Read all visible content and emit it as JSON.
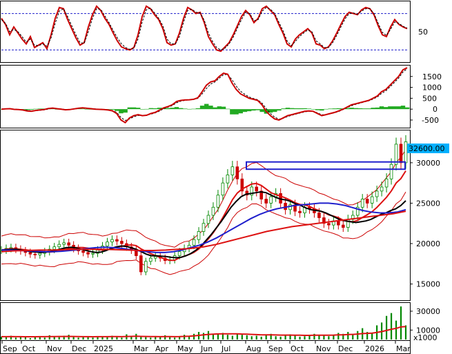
{
  "chart_data": [
    {
      "id": "stochastic",
      "type": "line",
      "y_ticks": [
        "50"
      ],
      "reference_levels": [
        20,
        80
      ],
      "ylim": [
        0,
        100
      ],
      "series": [
        {
          "color": "#cc0000",
          "values": [
            72,
            62,
            45,
            58,
            48,
            38,
            30,
            42,
            24,
            28,
            32,
            22,
            45,
            72,
            90,
            88,
            70,
            55,
            40,
            28,
            32,
            58,
            78,
            92,
            85,
            72,
            62,
            48,
            35,
            25,
            22,
            20,
            24,
            45,
            75,
            92,
            88,
            78,
            70,
            55,
            32,
            28,
            30,
            48,
            72,
            90,
            86,
            80,
            82,
            65,
            42,
            30,
            20,
            18,
            25,
            32,
            45,
            60,
            75,
            85,
            78,
            65,
            72,
            88,
            92,
            85,
            78,
            62,
            48,
            30,
            25,
            38,
            45,
            50,
            55,
            48,
            30,
            28,
            22,
            25,
            35,
            48,
            62,
            75,
            82,
            80,
            78,
            86,
            90,
            88,
            78,
            60,
            45,
            42,
            58,
            70,
            62,
            58,
            55
          ]
        },
        {
          "color": "#000000",
          "dashed": true,
          "values": [
            70,
            64,
            50,
            54,
            50,
            42,
            33,
            38,
            28,
            27,
            30,
            26,
            40,
            64,
            84,
            88,
            75,
            60,
            45,
            32,
            31,
            50,
            72,
            88,
            87,
            76,
            65,
            52,
            40,
            30,
            24,
            21,
            23,
            38,
            66,
            86,
            89,
            81,
            72,
            60,
            38,
            30,
            30,
            42,
            66,
            85,
            87,
            82,
            81,
            69,
            48,
            34,
            24,
            20,
            23,
            30,
            41,
            56,
            70,
            82,
            80,
            68,
            70,
            84,
            90,
            87,
            80,
            66,
            52,
            35,
            27,
            34,
            42,
            48,
            53,
            50,
            35,
            30,
            24,
            24,
            32,
            44,
            58,
            71,
            80,
            81,
            79,
            84,
            88,
            88,
            80,
            64,
            49,
            44,
            54,
            66,
            64,
            59,
            56
          ]
        }
      ]
    },
    {
      "id": "macd",
      "type": "line",
      "y_ticks": [
        "1500",
        "1000",
        "500",
        "0",
        "-500"
      ],
      "ylim": [
        -850,
        2000
      ],
      "macd_line": [
        0,
        10,
        20,
        -10,
        -20,
        -40,
        -80,
        -100,
        -60,
        -40,
        -20,
        30,
        50,
        20,
        0,
        -30,
        -20,
        10,
        40,
        60,
        40,
        20,
        0,
        -10,
        -20,
        -40,
        -80,
        -200,
        -500,
        -620,
        -400,
        -300,
        -250,
        -300,
        -280,
        -200,
        -150,
        -50,
        60,
        120,
        200,
        350,
        400,
        420,
        430,
        450,
        520,
        800,
        1100,
        1250,
        1300,
        1500,
        1650,
        1600,
        1200,
        900,
        700,
        600,
        500,
        450,
        400,
        200,
        -100,
        -300,
        -450,
        -500,
        -400,
        -300,
        -250,
        -200,
        -150,
        -100,
        -80,
        -100,
        -200,
        -300,
        -250,
        -200,
        -150,
        -80,
        0,
        100,
        200,
        250,
        300,
        350,
        400,
        500,
        600,
        800,
        900,
        1100,
        1300,
        1500,
        1800,
        1900
      ],
      "signal_line": [
        0,
        5,
        12,
        0,
        -10,
        -25,
        -55,
        -80,
        -70,
        -55,
        -35,
        5,
        35,
        25,
        8,
        -18,
        -18,
        2,
        28,
        48,
        42,
        28,
        10,
        -2,
        -12,
        -30,
        -62,
        -150,
        -380,
        -520,
        -450,
        -350,
        -290,
        -295,
        -285,
        -230,
        -175,
        -90,
        20,
        90,
        160,
        290,
        370,
        405,
        425,
        440,
        495,
        700,
        950,
        1150,
        1250,
        1420,
        1580,
        1590,
        1350,
        1050,
        820,
        680,
        560,
        490,
        430,
        280,
        30,
        -200,
        -370,
        -460,
        -420,
        -340,
        -280,
        -225,
        -175,
        -125,
        -95,
        -98,
        -170,
        -260,
        -255,
        -215,
        -170,
        -105,
        -20,
        70,
        160,
        220,
        275,
        330,
        380,
        460,
        555,
        720,
        840,
        1020,
        1220,
        1420,
        1700,
        1850
      ],
      "histogram": [
        0,
        5,
        8,
        -10,
        -10,
        -15,
        -25,
        -20,
        10,
        15,
        15,
        25,
        15,
        -5,
        -8,
        -12,
        -2,
        8,
        12,
        12,
        -2,
        -8,
        -10,
        -8,
        -8,
        -10,
        -18,
        -50,
        -120,
        -100,
        50,
        50,
        40,
        -5,
        5,
        30,
        25,
        40,
        40,
        30,
        40,
        60,
        30,
        15,
        5,
        10,
        25,
        100,
        150,
        100,
        50,
        80,
        70,
        10,
        -150,
        -150,
        -120,
        -80,
        -60,
        -40,
        -30,
        -80,
        -130,
        -100,
        -80,
        -40,
        20,
        40,
        30,
        25,
        25,
        25,
        15,
        -2,
        -30,
        -40,
        5,
        15,
        20,
        25,
        20,
        30,
        40,
        30,
        25,
        20,
        20,
        40,
        45,
        80,
        60,
        80,
        80,
        80,
        100,
        50
      ]
    },
    {
      "id": "price",
      "type": "line",
      "y_ticks": [
        "30000",
        "25000",
        "20000",
        "15000"
      ],
      "ylim": [
        13000,
        34000
      ],
      "last_price_label": "32600.00",
      "close": [
        19200,
        19400,
        19500,
        19300,
        19100,
        18900,
        18700,
        18600,
        18800,
        19000,
        19300,
        19600,
        19900,
        20100,
        19800,
        19400,
        19100,
        18900,
        18700,
        18800,
        19200,
        19700,
        20200,
        20500,
        20300,
        20000,
        19600,
        19200,
        18500,
        16500,
        17800,
        18200,
        18400,
        18200,
        17900,
        18000,
        18500,
        19000,
        19400,
        19800,
        20500,
        21500,
        22500,
        23500,
        24500,
        26000,
        27500,
        28500,
        29500,
        28000,
        26500,
        26000,
        27000,
        26500,
        25500,
        25000,
        25800,
        26200,
        25000,
        24200,
        24800,
        24000,
        23800,
        24500,
        24300,
        23800,
        23200,
        22500,
        22300,
        22800,
        22300,
        22000,
        23000,
        23500,
        24500,
        25500,
        25000,
        25800,
        26500,
        27000,
        28000,
        29800,
        32300,
        30000,
        32600
      ],
      "ma_black": [
        19200,
        19250,
        19300,
        19280,
        19200,
        19100,
        19000,
        18950,
        18900,
        18950,
        19050,
        19200,
        19350,
        19500,
        19550,
        19450,
        19300,
        19150,
        19000,
        18900,
        18950,
        19150,
        19400,
        19600,
        19700,
        19650,
        19500,
        19300,
        19000,
        18700,
        18500,
        18500,
        18450,
        18400,
        18300,
        18250,
        18300,
        18500,
        18800,
        19200,
        19700,
        20400,
        21100,
        21900,
        22700,
        23600,
        24500,
        25200,
        25800,
        26100,
        26200,
        26300,
        26400,
        26300,
        26000,
        25700,
        25500,
        25400,
        25200,
        24900,
        24700,
        24400,
        24200,
        24100,
        24000,
        23800,
        23500,
        23200,
        22900,
        22800,
        22700,
        22600,
        22700,
        22800,
        23000,
        23300,
        23600,
        23800,
        24100,
        24300,
        24700,
        25300
      ]
    },
    {
      "id": "volume",
      "type": "bar",
      "y_ticks": [
        "30000",
        "10000"
      ],
      "unit_label": "x1000",
      "ylim": [
        0,
        38000
      ],
      "values": [
        3000,
        2500,
        4000,
        2000,
        3000,
        2200,
        1500,
        3500,
        2800,
        2000,
        4500,
        3000,
        2500,
        4000,
        5000,
        3000,
        2000,
        2500,
        3500,
        2000,
        3000,
        3500,
        2500,
        4000,
        3000,
        2000,
        5500,
        4000,
        6000,
        3500,
        2500,
        2000,
        3000,
        2500,
        4500,
        3000,
        2000,
        3500,
        5000,
        4000,
        6000,
        8000,
        7000,
        9000,
        6000,
        5500,
        7000,
        5000,
        4000,
        6500,
        5000,
        4500,
        3500,
        4000,
        3000,
        5000,
        6000,
        3500,
        3000,
        4500,
        5500,
        4000,
        3000,
        3500,
        4500,
        6000,
        5000,
        4000,
        3500,
        5000,
        7000,
        6000,
        8000,
        5000,
        9000,
        12000,
        8000,
        7000,
        15000,
        18000,
        25000,
        28000,
        20000,
        35000,
        15000
      ],
      "ma_red": [
        3000,
        3000,
        3100,
        3000,
        3000,
        2900,
        2900,
        2900,
        3000,
        3000,
        3100,
        3100,
        3200,
        3200,
        3300,
        3200,
        3100,
        3000,
        3000,
        2900,
        3000,
        3000,
        3000,
        3100,
        3100,
        3000,
        3200,
        3300,
        3400,
        3300,
        3200,
        3100,
        3100,
        3000,
        3100,
        3100,
        3000,
        3100,
        3300,
        3500,
        3900,
        4400,
        4900,
        5400,
        5700,
        5900,
        6100,
        6100,
        6000,
        6000,
        5800,
        5600,
        5400,
        5200,
        5000,
        4900,
        4900,
        4800,
        4700,
        4700,
        4700,
        4600,
        4500,
        4400,
        4400,
        4500,
        4600,
        4600,
        4600,
        4700,
        4900,
        5000,
        5300,
        5400,
        5800,
        6300,
        6500,
        6800,
        7500,
        8400,
        9600,
        10900,
        11800,
        13400,
        13700
      ]
    }
  ],
  "x_axis": {
    "labels": [
      "Sep",
      "Oct",
      "Nov",
      "Dec",
      "2025",
      "Mar",
      "Apr",
      "May",
      "Jun",
      "Jul",
      "Aug",
      "Sep",
      "Oct",
      "Nov",
      "Dec",
      "2026",
      "Mar"
    ]
  },
  "colors": {
    "price_line": "#cc0000",
    "ma_black": "#000000",
    "ma_blue": "#1f1fcc",
    "ma_red": "#dd1111",
    "bollinger": "#cc0000",
    "highlight_box": "#1f1fcc",
    "up_candle": "#008800",
    "price_tag_bg": "#00b0ff",
    "histogram_pos": "#22aa22",
    "histogram_neg": "#22aa22"
  }
}
